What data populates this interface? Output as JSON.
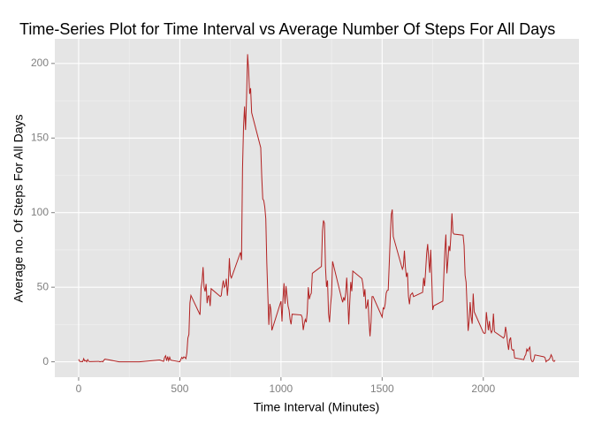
{
  "chart_data": {
    "type": "line",
    "title": "Time-Series Plot for Time Interval vs Average Number Of Steps For All Days",
    "x_label": "Time Interval (Minutes)",
    "y_label": "Average no. Of Steps For All Days",
    "x": [
      0,
      5,
      10,
      15,
      20,
      25,
      30,
      35,
      40,
      45,
      50,
      55,
      100,
      105,
      110,
      115,
      120,
      125,
      130,
      200,
      300,
      400,
      420,
      425,
      430,
      435,
      440,
      445,
      450,
      455,
      500,
      505,
      510,
      515,
      520,
      525,
      530,
      535,
      540,
      545,
      550,
      555,
      600,
      605,
      610,
      615,
      620,
      625,
      630,
      635,
      640,
      645,
      650,
      655,
      700,
      705,
      710,
      715,
      720,
      725,
      730,
      735,
      740,
      745,
      750,
      755,
      800,
      805,
      810,
      815,
      820,
      825,
      830,
      835,
      840,
      845,
      850,
      855,
      900,
      905,
      910,
      915,
      920,
      925,
      930,
      935,
      940,
      945,
      950,
      955,
      1000,
      1005,
      1010,
      1015,
      1020,
      1025,
      1030,
      1035,
      1040,
      1045,
      1050,
      1055,
      1100,
      1105,
      1110,
      1115,
      1120,
      1125,
      1130,
      1135,
      1140,
      1145,
      1150,
      1155,
      1200,
      1205,
      1210,
      1215,
      1220,
      1225,
      1230,
      1235,
      1240,
      1245,
      1250,
      1255,
      1300,
      1305,
      1310,
      1315,
      1320,
      1325,
      1330,
      1335,
      1340,
      1345,
      1350,
      1355,
      1400,
      1405,
      1410,
      1415,
      1420,
      1425,
      1430,
      1435,
      1440,
      1445,
      1450,
      1455,
      1500,
      1505,
      1510,
      1515,
      1520,
      1525,
      1530,
      1535,
      1540,
      1545,
      1550,
      1555,
      1600,
      1605,
      1610,
      1615,
      1620,
      1625,
      1630,
      1635,
      1640,
      1645,
      1650,
      1655,
      1700,
      1705,
      1710,
      1715,
      1720,
      1725,
      1730,
      1735,
      1740,
      1745,
      1750,
      1755,
      1800,
      1805,
      1810,
      1815,
      1820,
      1825,
      1830,
      1835,
      1840,
      1845,
      1850,
      1855,
      1900,
      1905,
      1910,
      1915,
      1920,
      1925,
      1930,
      1935,
      1940,
      1945,
      1950,
      1955,
      2000,
      2005,
      2010,
      2015,
      2020,
      2025,
      2030,
      2035,
      2040,
      2045,
      2050,
      2055,
      2100,
      2105,
      2110,
      2115,
      2120,
      2125,
      2130,
      2135,
      2140,
      2145,
      2150,
      2155,
      2200,
      2205,
      2210,
      2215,
      2220,
      2225,
      2230,
      2235,
      2240,
      2245,
      2250,
      2255,
      2300,
      2305,
      2310,
      2315,
      2320,
      2325,
      2330,
      2335,
      2340,
      2345,
      2350,
      2355
    ],
    "series": [
      {
        "color": "#b22222",
        "values": [
          1.7,
          0.3,
          0.1,
          0.2,
          0.1,
          2.1,
          0.5,
          0.9,
          0,
          1.5,
          0.3,
          0.1,
          0.3,
          0,
          0.1,
          0.3,
          0,
          1.1,
          1.8,
          0,
          0,
          1.2,
          0.3,
          3,
          4.1,
          0.7,
          3.5,
          0.8,
          3.1,
          1.1,
          0,
          1.6,
          3,
          2.2,
          3.3,
          3,
          2.1,
          6.1,
          16,
          18.3,
          39.5,
          44.5,
          31.5,
          49.3,
          53.8,
          63.5,
          50,
          47.1,
          52.2,
          39.3,
          44,
          44.2,
          37.4,
          49,
          43.8,
          44.4,
          50.5,
          54.5,
          49.9,
          51,
          55.7,
          44.3,
          52.3,
          69.5,
          57.8,
          56.2,
          73.4,
          68.2,
          129.4,
          157.5,
          171.2,
          155.4,
          177.3,
          206.2,
          195.9,
          179.6,
          183.4,
          167,
          143.5,
          124,
          109.1,
          108.1,
          103.7,
          95.9,
          66.2,
          45.2,
          24.8,
          38.8,
          35,
          21.1,
          40.6,
          27,
          42.4,
          52.7,
          38.9,
          50.8,
          44.3,
          37.4,
          34.7,
          28.3,
          25.1,
          31.9,
          31.4,
          29.7,
          21.3,
          25.5,
          28.4,
          26.5,
          33.4,
          50,
          42,
          44.6,
          46,
          59.3,
          63.9,
          87.7,
          94.8,
          92.8,
          63.4,
          50.2,
          54.5,
          32.4,
          26.5,
          37.7,
          45.1,
          67.3,
          42.3,
          39.9,
          43.3,
          41,
          46.2,
          56.4,
          42.8,
          25.1,
          39.9,
          53.5,
          47.3,
          60.8,
          55.8,
          52,
          43.6,
          48.7,
          35.5,
          37.5,
          41.8,
          27.5,
          17.1,
          26.4,
          43.7,
          43.8,
          30,
          36.1,
          35.5,
          38.8,
          46,
          47.8,
          48.1,
          65.3,
          82.9,
          98.7,
          102.1,
          84,
          62.1,
          64.1,
          74.5,
          63.2,
          56.9,
          59.8,
          43.9,
          38.6,
          44.7,
          45.5,
          46.2,
          43.7,
          46.6,
          56.3,
          50.7,
          61.2,
          72.7,
          78.9,
          68.9,
          59.7,
          75.1,
          56.5,
          34.8,
          37.5,
          40.7,
          58,
          74.7,
          85.3,
          59.3,
          67.8,
          77.7,
          74.2,
          85.3,
          99.5,
          86.6,
          85.6,
          84.9,
          77.8,
          58,
          53.4,
          36.3,
          20.7,
          27.4,
          40,
          30.2,
          25.5,
          45.7,
          33.5,
          19.6,
          19,
          19.3,
          33.3,
          26.8,
          21.2,
          27.3,
          21.3,
          19.5,
          21.3,
          32.3,
          20.2,
          15.9,
          17.2,
          23.5,
          19.2,
          12.5,
          8,
          14.7,
          16.3,
          8.7,
          7.8,
          8.1,
          2.6,
          1.5,
          3.7,
          4.8,
          8.5,
          7.1,
          8.7,
          9.8,
          2.2,
          0.3,
          0.1,
          1.6,
          4.6,
          3.3,
          2.8,
          0,
          0.8,
          1,
          1.6,
          2.6,
          4.7,
          3.3,
          0.6,
          0.2,
          1.1
        ]
      }
    ],
    "xlim": [
      -117.75,
      2472.75
    ],
    "xticks": [
      0,
      500,
      1000,
      1500,
      2000
    ],
    "ylim": [
      -10.31,
      216.48
    ],
    "yticks": [
      0,
      50,
      100,
      150,
      200
    ],
    "grid": true
  }
}
